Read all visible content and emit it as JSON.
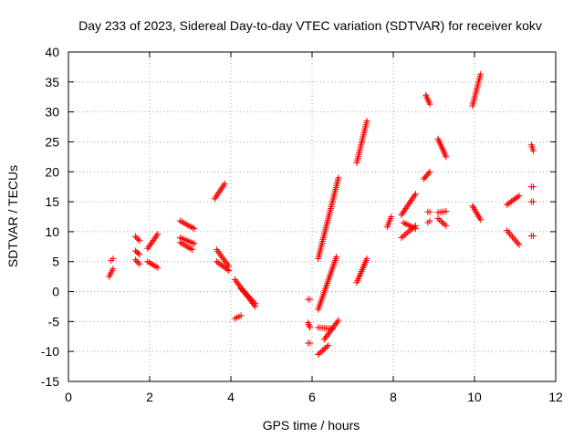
{
  "chart_data": {
    "type": "scatter",
    "title": "Day 233 of 2023, Sidereal Day-to-day VTEC variation (SDTVAR) for receiver kokv",
    "xlabel": "GPS time / hours",
    "ylabel": "SDTVAR / TECUs",
    "xlim": [
      0,
      12
    ],
    "ylim": [
      -15,
      40
    ],
    "xticks": [
      0,
      2,
      4,
      6,
      8,
      10,
      12
    ],
    "yticks": [
      -15,
      -10,
      -5,
      0,
      5,
      10,
      15,
      20,
      25,
      30,
      35,
      40
    ],
    "grid": true,
    "marker": "plus",
    "color": "#ff0000",
    "segments": [
      {
        "x": [
          1.0,
          1.1
        ],
        "y": [
          2.5,
          3.8
        ]
      },
      {
        "x": [
          1.05,
          1.1
        ],
        "y": [
          5.2,
          5.5
        ]
      },
      {
        "x": [
          1.65,
          1.75
        ],
        "y": [
          9.2,
          8.5
        ]
      },
      {
        "x": [
          1.65,
          1.75
        ],
        "y": [
          6.8,
          6.2
        ]
      },
      {
        "x": [
          1.65,
          1.75
        ],
        "y": [
          5.3,
          4.6
        ]
      },
      {
        "x": [
          1.95,
          2.2
        ],
        "y": [
          7.2,
          9.6
        ]
      },
      {
        "x": [
          1.95,
          2.2
        ],
        "y": [
          5.0,
          4.0
        ]
      },
      {
        "x": [
          2.75,
          3.1
        ],
        "y": [
          11.8,
          10.5
        ]
      },
      {
        "x": [
          2.75,
          3.1
        ],
        "y": [
          9.0,
          8.0
        ]
      },
      {
        "x": [
          2.75,
          3.05
        ],
        "y": [
          8.2,
          7.0
        ]
      },
      {
        "x": [
          3.6,
          3.85
        ],
        "y": [
          15.5,
          18.0
        ]
      },
      {
        "x": [
          3.65,
          3.95
        ],
        "y": [
          7.0,
          4.2
        ]
      },
      {
        "x": [
          3.65,
          3.95
        ],
        "y": [
          5.0,
          3.5
        ]
      },
      {
        "x": [
          4.1,
          4.25
        ],
        "y": [
          -4.5,
          -4.0
        ]
      },
      {
        "x": [
          4.1,
          4.6
        ],
        "y": [
          2.0,
          -2.5
        ]
      },
      {
        "x": [
          4.25,
          4.6
        ],
        "y": [
          0.5,
          -2.0
        ]
      },
      {
        "x": [
          5.9,
          5.95
        ],
        "y": [
          -1.3,
          -1.3
        ]
      },
      {
        "x": [
          5.9,
          5.95
        ],
        "y": [
          -5.2,
          -6.0
        ]
      },
      {
        "x": [
          5.9,
          5.95
        ],
        "y": [
          -8.6,
          -8.6
        ]
      },
      {
        "x": [
          6.15,
          6.4
        ],
        "y": [
          -10.5,
          -9.0
        ]
      },
      {
        "x": [
          6.15,
          6.6
        ],
        "y": [
          -3.0,
          5.8
        ]
      },
      {
        "x": [
          6.15,
          6.65
        ],
        "y": [
          5.5,
          19.0
        ]
      },
      {
        "x": [
          6.15,
          6.5
        ],
        "y": [
          -6.0,
          -6.2
        ]
      },
      {
        "x": [
          6.3,
          6.65
        ],
        "y": [
          -8.0,
          -4.8
        ]
      },
      {
        "x": [
          7.1,
          7.35
        ],
        "y": [
          1.5,
          5.5
        ]
      },
      {
        "x": [
          7.1,
          7.35
        ],
        "y": [
          21.5,
          28.5
        ]
      },
      {
        "x": [
          7.85,
          7.95
        ],
        "y": [
          10.8,
          12.5
        ]
      },
      {
        "x": [
          8.2,
          8.55
        ],
        "y": [
          12.8,
          16.3
        ]
      },
      {
        "x": [
          8.2,
          8.55
        ],
        "y": [
          9.0,
          11.0
        ]
      },
      {
        "x": [
          8.25,
          8.55
        ],
        "y": [
          11.5,
          10.5
        ]
      },
      {
        "x": [
          8.75,
          8.9
        ],
        "y": [
          18.8,
          20.0
        ]
      },
      {
        "x": [
          8.8,
          8.9
        ],
        "y": [
          32.8,
          31.3
        ]
      },
      {
        "x": [
          8.85,
          8.9
        ],
        "y": [
          13.3,
          13.3
        ]
      },
      {
        "x": [
          8.85,
          8.9
        ],
        "y": [
          11.5,
          11.8
        ]
      },
      {
        "x": [
          9.1,
          9.3
        ],
        "y": [
          25.5,
          22.5
        ]
      },
      {
        "x": [
          9.1,
          9.3
        ],
        "y": [
          13.2,
          13.4
        ]
      },
      {
        "x": [
          9.1,
          9.3
        ],
        "y": [
          12.2,
          11.0
        ]
      },
      {
        "x": [
          9.95,
          10.15
        ],
        "y": [
          31.0,
          36.3
        ]
      },
      {
        "x": [
          9.95,
          10.15
        ],
        "y": [
          14.3,
          12.0
        ]
      },
      {
        "x": [
          10.8,
          11.1
        ],
        "y": [
          14.5,
          16.0
        ]
      },
      {
        "x": [
          10.8,
          11.1
        ],
        "y": [
          10.2,
          7.8
        ]
      },
      {
        "x": [
          11.4,
          11.45
        ],
        "y": [
          24.5,
          23.5
        ]
      },
      {
        "x": [
          11.4,
          11.45
        ],
        "y": [
          17.5,
          17.5
        ]
      },
      {
        "x": [
          11.4,
          11.45
        ],
        "y": [
          15.0,
          15.0
        ]
      },
      {
        "x": [
          11.4,
          11.45
        ],
        "y": [
          9.3,
          9.3
        ]
      }
    ]
  }
}
